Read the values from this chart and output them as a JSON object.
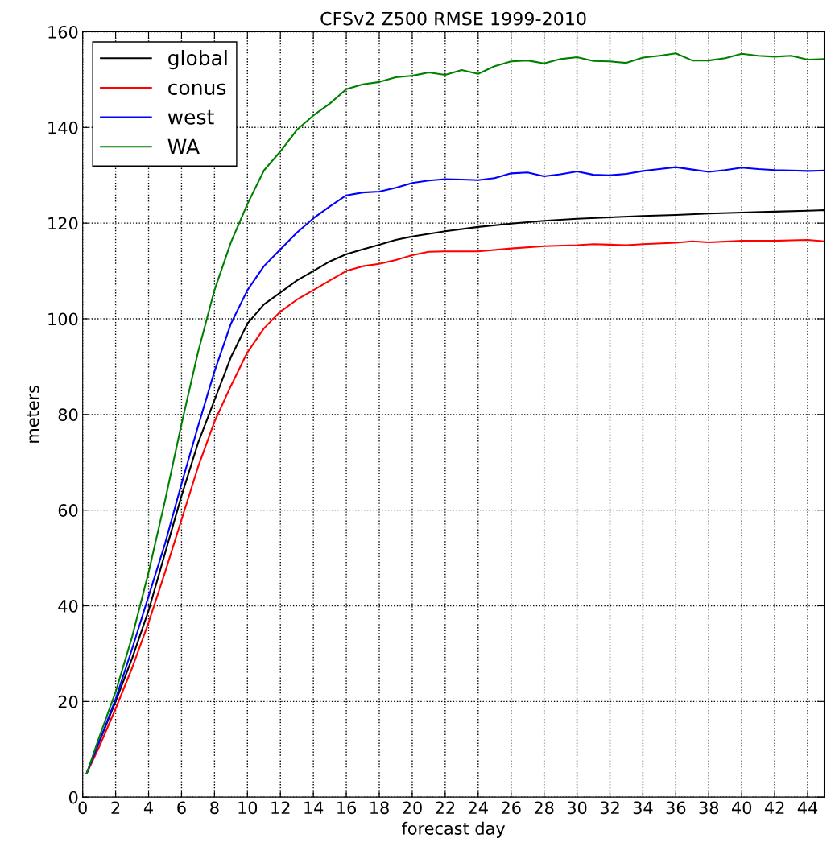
{
  "chart_data": {
    "type": "line",
    "title": "CFSv2 Z500 RMSE 1999-2010",
    "xlabel": "forecast day",
    "ylabel": "meters",
    "xlim": [
      0,
      45
    ],
    "xticks": [
      0,
      2,
      4,
      6,
      8,
      10,
      12,
      14,
      16,
      18,
      20,
      22,
      24,
      26,
      28,
      30,
      32,
      34,
      36,
      38,
      40,
      42,
      44
    ],
    "ylim": [
      0,
      160
    ],
    "yticks": [
      0,
      20,
      40,
      60,
      80,
      100,
      120,
      140,
      160
    ],
    "grid": true,
    "legend": "top left",
    "line_style": "solid",
    "series": [
      {
        "name": "global",
        "color": "#000000",
        "x": [
          0.25,
          1,
          2,
          3,
          4,
          5,
          6,
          7,
          8,
          9,
          10,
          11,
          12,
          13,
          14,
          15,
          16,
          17,
          18,
          19,
          20,
          22,
          24,
          26,
          28,
          30,
          32,
          34,
          36,
          38,
          40,
          42,
          44,
          45
        ],
        "values": [
          5,
          11.5,
          20,
          29,
          39,
          51,
          63,
          74,
          83,
          92,
          99,
          103,
          105.5,
          108,
          110,
          112,
          113.5,
          114.5,
          115.5,
          116.5,
          117.2,
          118.3,
          119.2,
          119.9,
          120.5,
          120.9,
          121.2,
          121.5,
          121.7,
          122,
          122.2,
          122.4,
          122.6,
          122.7
        ]
      },
      {
        "name": "conus",
        "color": "#ff0000",
        "x": [
          0.25,
          1,
          2,
          3,
          4,
          5,
          6,
          7,
          8,
          9,
          10,
          11,
          12,
          13,
          14,
          15,
          16,
          17,
          18,
          19,
          20,
          21,
          22,
          24,
          26,
          28,
          30,
          31,
          32,
          33,
          34,
          36,
          37,
          38,
          40,
          42,
          43,
          44,
          45
        ],
        "values": [
          5,
          10.5,
          18.5,
          27,
          36.5,
          47,
          58,
          69,
          78.5,
          86,
          93,
          98,
          101.5,
          104,
          106,
          108,
          110,
          111,
          111.5,
          112.3,
          113.3,
          114,
          114.1,
          114.1,
          114.7,
          115.2,
          115.4,
          115.6,
          115.5,
          115.4,
          115.6,
          115.9,
          116.2,
          116,
          116.3,
          116.3,
          116.4,
          116.5,
          116.2
        ]
      },
      {
        "name": "west",
        "color": "#0000ff",
        "x": [
          0.25,
          1,
          2,
          3,
          4,
          5,
          6,
          7,
          8,
          9,
          10,
          11,
          12,
          13,
          14,
          15,
          16,
          17,
          18,
          19,
          20,
          21,
          22,
          23,
          24,
          25,
          26,
          27,
          28,
          29,
          30,
          31,
          32,
          33,
          34,
          35,
          36,
          37,
          38,
          39,
          40,
          41,
          42,
          43,
          44,
          45
        ],
        "values": [
          5,
          11.5,
          20.5,
          31,
          42,
          53,
          65.5,
          77.5,
          89,
          99,
          106,
          111,
          114.5,
          118,
          121,
          123.5,
          125.8,
          126.4,
          126.6,
          127.4,
          128.4,
          128.9,
          129.2,
          129.1,
          129.0,
          129.4,
          130.4,
          130.6,
          129.8,
          130.2,
          130.8,
          130.1,
          130.0,
          130.3,
          130.9,
          131.3,
          131.7,
          131.2,
          130.7,
          131.1,
          131.6,
          131.3,
          131.1,
          131.0,
          130.9,
          131.0
        ]
      },
      {
        "name": "WA",
        "color": "#008000",
        "x": [
          0.25,
          1,
          2,
          3,
          4,
          5,
          6,
          7,
          8,
          9,
          10,
          11,
          12,
          13,
          14,
          15,
          16,
          17,
          18,
          19,
          20,
          21,
          22,
          23,
          24,
          25,
          26,
          27,
          28,
          29,
          30,
          31,
          32,
          33,
          34,
          35,
          36,
          37,
          38,
          39,
          40,
          41,
          42,
          43,
          44,
          45
        ],
        "values": [
          5,
          12.5,
          22,
          33.5,
          47,
          62,
          78,
          93,
          106,
          116,
          124,
          131,
          135,
          139.5,
          142.5,
          145,
          148,
          149,
          149.5,
          150.5,
          150.8,
          151.5,
          151,
          152,
          151.2,
          152.8,
          153.8,
          154,
          153.4,
          154.3,
          154.7,
          153.9,
          153.8,
          153.5,
          154.6,
          155,
          155.5,
          154,
          154,
          154.5,
          155.4,
          155,
          154.8,
          155,
          154.2,
          154.3
        ]
      }
    ]
  }
}
